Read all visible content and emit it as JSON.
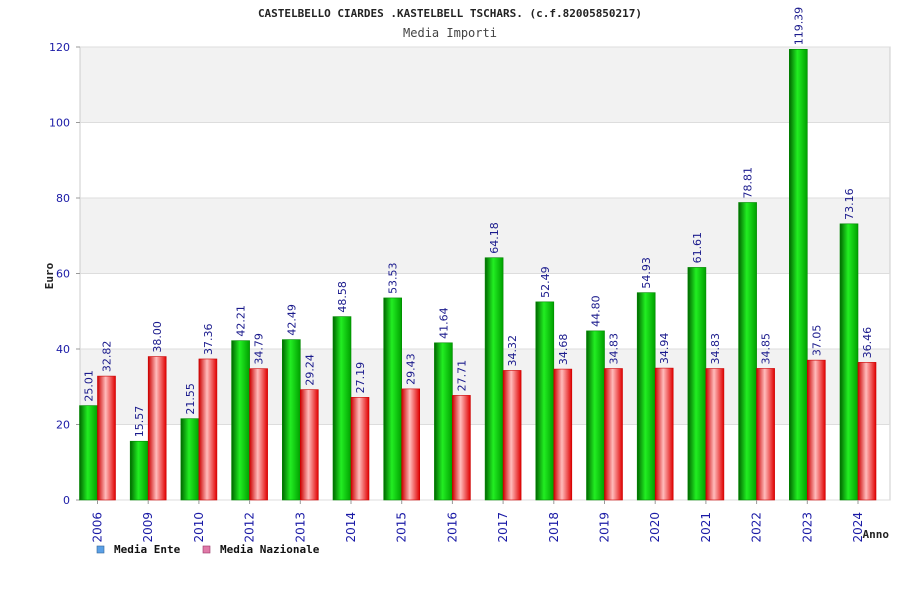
{
  "chart_data": {
    "type": "bar",
    "title": "CASTELBELLO CIARDES .KASTELBELL TSCHARS. (c.f.82005850217)",
    "subtitle": "Media Importi",
    "ylabel": "Euro",
    "xlabel": "Anno",
    "ylim": [
      0,
      120
    ],
    "yticks": [
      0,
      20,
      40,
      60,
      80,
      100,
      120
    ],
    "grid": true,
    "legend_position": "bottom-left",
    "categories": [
      "2006",
      "2009",
      "2010",
      "2012",
      "2013",
      "2014",
      "2015",
      "2016",
      "2017",
      "2018",
      "2019",
      "2020",
      "2021",
      "2022",
      "2023",
      "2024"
    ],
    "series": [
      {
        "name": "Media Ente",
        "color": "#00cc00",
        "legend_color": "#5aa0e6",
        "values": [
          25.01,
          15.57,
          21.55,
          42.21,
          42.49,
          48.58,
          53.53,
          41.64,
          64.18,
          52.49,
          44.8,
          54.93,
          61.61,
          78.81,
          119.39,
          73.16
        ],
        "labels": [
          "25.01",
          "15.57",
          "21.55",
          "42.21",
          "42.49",
          "48.58",
          "53.53",
          "41.64",
          "64.18",
          "52.49",
          "44.80",
          "54.93",
          "61.61",
          "78.81",
          "119.39",
          "73.16"
        ]
      },
      {
        "name": "Media Nazionale",
        "color": "#ee1111",
        "legend_color": "#e07aa8",
        "values": [
          32.82,
          38.0,
          37.36,
          34.79,
          29.24,
          27.19,
          29.43,
          27.71,
          34.32,
          34.68,
          34.83,
          34.94,
          34.83,
          34.85,
          37.05,
          36.46
        ],
        "labels": [
          "32.82",
          "38.00",
          "37.36",
          "34.79",
          "29.24",
          "27.19",
          "29.43",
          "27.71",
          "34.32",
          "34.68",
          "34.83",
          "34.94",
          "34.83",
          "34.85",
          "37.05",
          "36.46"
        ]
      }
    ]
  }
}
